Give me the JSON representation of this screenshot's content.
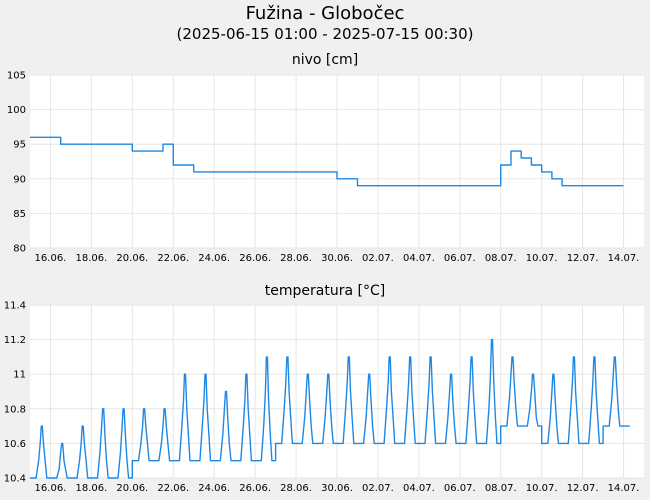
{
  "header": {
    "title": "Fužina - Globočec",
    "subtitle": "(2025-06-15 01:00 - 2025-07-15 00:30)"
  },
  "colors": {
    "line": "#1e88e5",
    "grid": "#e6e6e6",
    "background": "#f0f0f0",
    "plot": "#ffffff"
  },
  "chart_data": [
    {
      "type": "line",
      "title": "nivo [cm]",
      "xlabel": "",
      "ylabel": "",
      "x_tick_labels": [
        "16.06.",
        "18.06.",
        "20.06.",
        "22.06.",
        "24.06.",
        "26.06.",
        "28.06.",
        "30.06.",
        "02.07.",
        "04.07.",
        "06.07.",
        "08.07.",
        "10.07.",
        "12.07.",
        "14.07."
      ],
      "y_ticks": [
        80,
        85,
        90,
        95,
        100,
        105
      ],
      "ylim": [
        80,
        105
      ],
      "xlim": [
        "2025-06-15",
        "2025-07-15"
      ],
      "grid": true,
      "series": [
        {
          "x": [
            "2025-06-15",
            "2025-06-16",
            "2025-06-16.5",
            "2025-06-17",
            "2025-06-18",
            "2025-06-19",
            "2025-06-19.5",
            "2025-06-20",
            "2025-06-21",
            "2025-06-21.5",
            "2025-06-22",
            "2025-06-23",
            "2025-06-24",
            "2025-06-25",
            "2025-06-26",
            "2025-06-27",
            "2025-06-28",
            "2025-06-29",
            "2025-06-30",
            "2025-07-01",
            "2025-07-02",
            "2025-07-03",
            "2025-07-04",
            "2025-07-05",
            "2025-07-06",
            "2025-07-07",
            "2025-07-07.8",
            "2025-07-08",
            "2025-07-08.5",
            "2025-07-09",
            "2025-07-09.5",
            "2025-07-10",
            "2025-07-10.5",
            "2025-07-11",
            "2025-07-12",
            "2025-07-13",
            "2025-07-14",
            "2025-07-14.7"
          ],
          "y": [
            96,
            96,
            95,
            95,
            95,
            95,
            95,
            94,
            94,
            95,
            92,
            91,
            91,
            91,
            91,
            91,
            91,
            91,
            90,
            89,
            89,
            89,
            89,
            89,
            89,
            89,
            89,
            92,
            94,
            93,
            92,
            91,
            90,
            89,
            89,
            89,
            89,
            89
          ]
        }
      ]
    },
    {
      "type": "line",
      "title": "temperatura [°C]",
      "xlabel": "",
      "ylabel": "",
      "x_tick_labels": [
        "16.06.",
        "18.06.",
        "20.06.",
        "22.06.",
        "24.06.",
        "26.06.",
        "28.06.",
        "30.06.",
        "02.07.",
        "04.07.",
        "06.07.",
        "08.07.",
        "10.07.",
        "12.07.",
        "14.07."
      ],
      "y_tick_labels": [
        "10.4",
        "10.6",
        "10.8",
        "11",
        "11.2",
        "11.4"
      ],
      "ylim": [
        10.4,
        11.4
      ],
      "xlim": [
        "2025-06-15",
        "2025-07-15"
      ],
      "grid": true,
      "series": [
        {
          "daily_min": [
            10.4,
            10.4,
            10.4,
            10.4,
            10.4,
            10.5,
            10.5,
            10.5,
            10.5,
            10.5,
            10.5,
            10.5,
            10.6,
            10.6,
            10.6,
            10.6,
            10.6,
            10.6,
            10.6,
            10.6,
            10.6,
            10.6,
            10.6,
            10.7,
            10.7,
            10.6,
            10.6,
            10.6,
            10.7,
            10.7
          ],
          "daily_max": [
            10.7,
            10.6,
            10.7,
            10.8,
            10.8,
            10.8,
            10.8,
            11.0,
            11.0,
            10.9,
            11.0,
            11.1,
            11.1,
            11.0,
            11.0,
            11.1,
            11.0,
            11.1,
            11.1,
            11.1,
            11.0,
            11.1,
            11.2,
            11.1,
            11.0,
            11.0,
            11.1,
            11.1,
            11.1,
            11.1
          ],
          "x_start": "2025-06-15",
          "step": "1 day"
        }
      ]
    }
  ]
}
